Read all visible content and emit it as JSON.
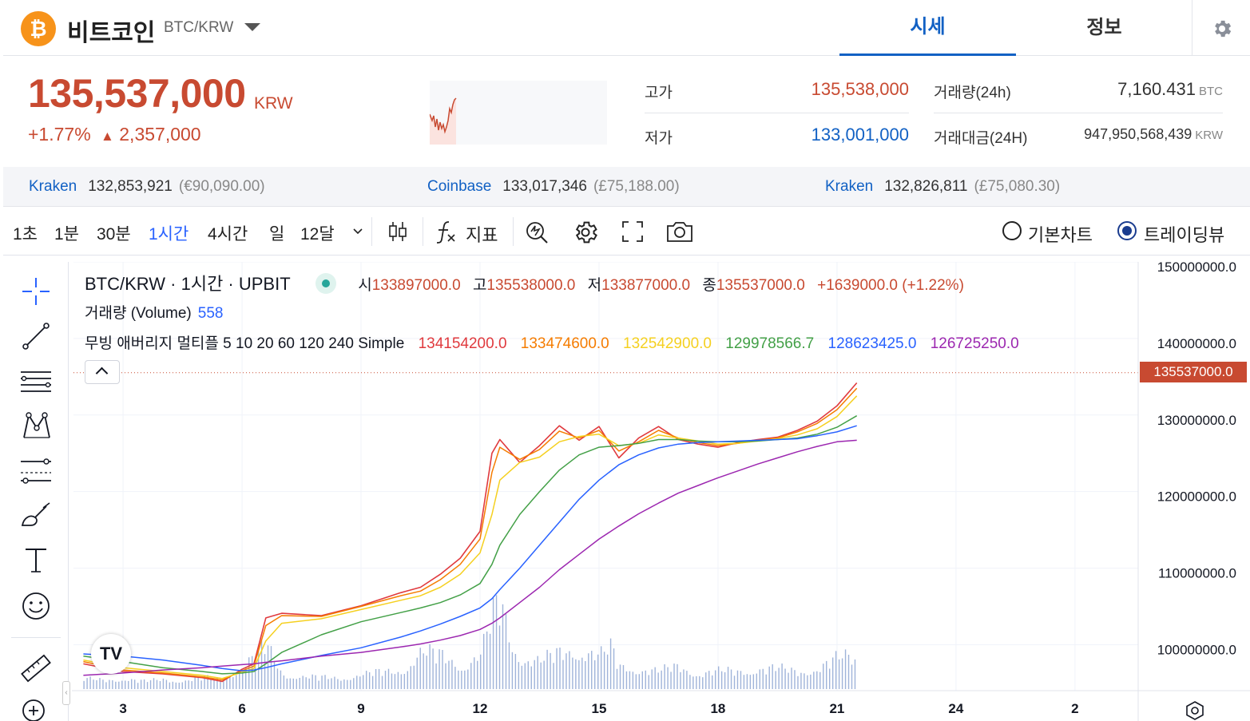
{
  "header": {
    "coin_symbol_glyph": "₿",
    "coin_name": "비트코인",
    "pair": "BTC/KRW",
    "tabs": [
      {
        "label": "시세",
        "active": true
      },
      {
        "label": "정보",
        "active": false
      }
    ]
  },
  "price": {
    "current": "135,537,000",
    "unit": "KRW",
    "change_pct": "+1.77%",
    "change_arrow": "▲",
    "change_abs": "2,357,000"
  },
  "stats": {
    "high_label": "고가",
    "high_value": "135,538,000",
    "low_label": "저가",
    "low_value": "133,001,000",
    "volume_label": "거래량(24h)",
    "volume_value": "7,160.431",
    "volume_unit": "BTC",
    "amount_label": "거래대금(24H)",
    "amount_value": "947,950,568,439",
    "amount_unit": "KRW"
  },
  "exchanges": [
    {
      "name": "Kraken",
      "price": "132,853,921",
      "fiat": "(€90,090.00)"
    },
    {
      "name": "Coinbase",
      "price": "133,017,346",
      "fiat": "(£75,188.00)"
    },
    {
      "name": "Kraken",
      "price": "132,826,811",
      "fiat": "(£75,080.30)"
    }
  ],
  "toolbar": {
    "timeframes": [
      {
        "label": "1초",
        "active": false
      },
      {
        "label": "1분",
        "active": false
      },
      {
        "label": "30분",
        "active": false
      },
      {
        "label": "1시간",
        "active": true
      },
      {
        "label": "4시간",
        "active": false
      },
      {
        "label": "일",
        "active": false
      },
      {
        "label": "12달",
        "active": false
      }
    ],
    "indicator_label": "지표",
    "chart_modes": [
      {
        "label": "기본차트",
        "checked": false
      },
      {
        "label": "트레이딩뷰",
        "checked": true
      }
    ]
  },
  "chart_legend": {
    "title": "BTC/KRW · 1시간 · UPBIT",
    "open_label": "시",
    "open": "133897000.0",
    "high_label": "고",
    "high": "135538000.0",
    "low_label": "저",
    "low": "133877000.0",
    "close_label": "종",
    "close": "135537000.0",
    "change": "+1639000.0 (+1.22%)",
    "volume_label": "거래량 (Volume)",
    "volume_value": "558",
    "ma_label": "무빙 애버리지 멀티플 5 10 20 60 120 240 Simple",
    "ma_values": [
      {
        "value": "134154200.0",
        "color": "#e03a3e"
      },
      {
        "value": "133474600.0",
        "color": "#f57c00"
      },
      {
        "value": "132542900.0",
        "color": "#f5d020"
      },
      {
        "value": "129978566.7",
        "color": "#43a047"
      },
      {
        "value": "128623425.0",
        "color": "#2962ff"
      },
      {
        "value": "126725250.0",
        "color": "#9c27b0"
      }
    ],
    "tv_logo": "TV",
    "last_price_tag": "135537000.0"
  },
  "colors": {
    "up": "#c84a31",
    "down": "#1261c4",
    "accent": "#1261c4",
    "ma5": "#e03a3e",
    "ma10": "#f57c00",
    "ma20": "#f5d020",
    "ma60": "#43a047",
    "ma120": "#2962ff",
    "ma240": "#9c27b0",
    "volume": "#9fb3d9"
  },
  "chart_data": {
    "type": "line",
    "x_ticks": [
      "3",
      "6",
      "9",
      "12",
      "15",
      "18",
      "21",
      "24",
      "2"
    ],
    "y_ticks": [
      "150000000.0",
      "140000000.0",
      "130000000.0",
      "120000000.0",
      "110000000.0",
      "100000000.0"
    ],
    "ylim": [
      94000000,
      150000000
    ],
    "last_price": 135537000,
    "series": [
      {
        "name": "5",
        "color": "#e03a3e",
        "x": [
          2.0,
          3.0,
          4.0,
          5.0,
          5.5,
          6.0,
          6.3,
          6.6,
          7.0,
          8.0,
          9.0,
          10.0,
          10.5,
          11.0,
          11.5,
          12.0,
          12.3,
          12.5,
          13.0,
          13.5,
          14.0,
          14.5,
          15.0,
          15.5,
          16.0,
          16.5,
          17.0,
          17.5,
          18.0,
          18.5,
          19.0,
          19.5,
          20.0,
          20.5,
          21.0,
          21.5
        ],
        "values": [
          97.5,
          96.5,
          96.2,
          95.7,
          95.2,
          96.8,
          97.5,
          103.5,
          104.1,
          103.8,
          105.1,
          106.8,
          107.5,
          109.2,
          111.3,
          114.8,
          125.0,
          126.8,
          123.8,
          126.0,
          128.6,
          126.7,
          128.5,
          124.4,
          127.0,
          128.5,
          126.8,
          126.2,
          125.8,
          126.4,
          126.8,
          127.1,
          128.0,
          129.2,
          131.2,
          134.2
        ]
      },
      {
        "name": "10",
        "color": "#f57c00",
        "x": [
          2.0,
          3.0,
          4.0,
          5.0,
          5.5,
          6.0,
          6.3,
          6.6,
          7.0,
          8.0,
          9.0,
          10.0,
          10.5,
          11.0,
          11.5,
          12.0,
          12.3,
          12.5,
          13.0,
          13.5,
          14.0,
          14.5,
          15.0,
          15.5,
          16.0,
          16.5,
          17.0,
          17.5,
          18.0,
          18.5,
          19.0,
          19.5,
          20.0,
          20.5,
          21.0,
          21.5
        ],
        "values": [
          97.8,
          96.7,
          96.3,
          95.8,
          95.4,
          96.6,
          97.2,
          102.5,
          103.8,
          103.7,
          105.0,
          106.4,
          107.0,
          108.5,
          110.5,
          113.8,
          122.5,
          125.8,
          124.2,
          125.5,
          127.9,
          127.0,
          128.0,
          125.3,
          126.5,
          128.0,
          127.0,
          126.4,
          126.0,
          126.3,
          126.7,
          127.0,
          127.8,
          128.9,
          130.7,
          133.5
        ]
      },
      {
        "name": "20",
        "color": "#f5d020",
        "x": [
          2.0,
          3.0,
          4.0,
          5.0,
          5.5,
          6.0,
          6.3,
          6.6,
          7.0,
          8.0,
          9.0,
          10.0,
          10.5,
          11.0,
          11.5,
          12.0,
          12.3,
          12.5,
          13.0,
          13.5,
          14.0,
          14.5,
          15.0,
          15.5,
          16.0,
          16.5,
          17.0,
          17.5,
          18.0,
          18.5,
          19.0,
          19.5,
          20.0,
          20.5,
          21.0,
          21.5
        ],
        "values": [
          98.0,
          97.0,
          96.5,
          96.0,
          95.6,
          96.4,
          96.9,
          100.5,
          102.8,
          103.4,
          104.6,
          105.8,
          106.4,
          107.5,
          109.2,
          112.0,
          117.0,
          121.5,
          123.8,
          124.5,
          126.5,
          127.2,
          127.5,
          126.0,
          126.3,
          127.4,
          127.0,
          126.6,
          126.2,
          126.3,
          126.6,
          126.9,
          127.4,
          128.2,
          129.8,
          132.5
        ]
      },
      {
        "name": "60",
        "color": "#43a047",
        "x": [
          2.0,
          3.0,
          4.0,
          5.0,
          5.5,
          6.0,
          6.3,
          6.6,
          7.0,
          8.0,
          9.0,
          10.0,
          10.5,
          11.0,
          11.5,
          12.0,
          12.3,
          12.5,
          13.0,
          13.5,
          14.0,
          14.5,
          15.0,
          15.5,
          16.0,
          16.5,
          17.0,
          17.5,
          18.0,
          18.5,
          19.0,
          19.5,
          20.0,
          20.5,
          21.0,
          21.5
        ],
        "values": [
          98.5,
          97.8,
          97.0,
          96.5,
          96.2,
          96.3,
          96.5,
          97.5,
          99.0,
          101.3,
          103.0,
          104.2,
          104.8,
          105.5,
          106.5,
          108.0,
          110.5,
          113.0,
          117.0,
          120.0,
          122.8,
          124.8,
          125.8,
          126.0,
          126.3,
          126.8,
          126.8,
          126.6,
          126.5,
          126.5,
          126.6,
          126.8,
          127.0,
          127.5,
          128.4,
          129.9
        ]
      },
      {
        "name": "120",
        "color": "#2962ff",
        "x": [
          2.0,
          3.0,
          4.0,
          5.0,
          5.5,
          6.0,
          6.3,
          6.6,
          7.0,
          8.0,
          9.0,
          10.0,
          10.5,
          11.0,
          11.5,
          12.0,
          12.3,
          12.5,
          13.0,
          13.5,
          14.0,
          14.5,
          15.0,
          15.5,
          16.0,
          16.5,
          17.0,
          17.5,
          18.0,
          18.5,
          19.0,
          19.5,
          20.0,
          20.5,
          21.0,
          21.5
        ],
        "values": [
          98.8,
          98.5,
          98.0,
          97.3,
          96.9,
          96.6,
          96.7,
          97.0,
          97.5,
          98.6,
          99.6,
          101.0,
          101.8,
          102.7,
          103.7,
          104.8,
          106.0,
          107.2,
          110.0,
          113.0,
          116.0,
          119.0,
          121.5,
          123.5,
          124.8,
          125.7,
          126.2,
          126.4,
          126.5,
          126.6,
          126.7,
          126.8,
          126.9,
          127.3,
          127.8,
          128.6
        ]
      },
      {
        "name": "240",
        "color": "#9c27b0",
        "x": [
          2.0,
          3.0,
          4.0,
          5.0,
          5.5,
          6.0,
          6.3,
          6.6,
          7.0,
          8.0,
          9.0,
          10.0,
          10.5,
          11.0,
          11.5,
          12.0,
          12.3,
          12.5,
          13.0,
          13.5,
          14.0,
          14.5,
          15.0,
          15.5,
          16.0,
          16.5,
          17.0,
          17.5,
          18.0,
          18.5,
          19.0,
          19.5,
          20.0,
          20.5,
          21.0,
          21.5
        ],
        "values": [
          96.0,
          96.3,
          96.7,
          97.0,
          97.2,
          97.4,
          97.5,
          97.7,
          97.9,
          98.5,
          99.0,
          99.7,
          100.1,
          100.6,
          101.2,
          102.0,
          102.8,
          103.5,
          105.5,
          107.5,
          109.8,
          111.8,
          113.8,
          115.5,
          117.1,
          118.5,
          119.8,
          120.8,
          121.8,
          122.7,
          123.6,
          124.4,
          125.2,
          125.9,
          126.5,
          126.7
        ]
      }
    ],
    "volume": {
      "x": [
        2.0,
        2.5,
        3.0,
        3.5,
        4.0,
        4.5,
        5.0,
        5.5,
        6.0,
        6.3,
        6.6,
        7.0,
        7.5,
        8.0,
        8.5,
        9.0,
        9.5,
        10.0,
        10.5,
        11.0,
        11.5,
        12.0,
        12.3,
        12.5,
        12.8,
        13.0,
        13.5,
        14.0,
        14.5,
        15.0,
        15.3,
        15.5,
        16.0,
        16.5,
        17.0,
        17.5,
        18.0,
        18.5,
        19.0,
        19.5,
        20.0,
        20.5,
        21.0,
        21.3,
        21.5
      ],
      "values": [
        400,
        350,
        420,
        300,
        380,
        330,
        450,
        380,
        900,
        1300,
        1700,
        600,
        500,
        450,
        420,
        600,
        650,
        700,
        1500,
        1300,
        900,
        1400,
        2800,
        3400,
        1700,
        1300,
        1100,
        1400,
        1600,
        1300,
        1600,
        900,
        800,
        700,
        900,
        600,
        700,
        700,
        800,
        800,
        700,
        800,
        1200,
        1300,
        1100
      ]
    }
  }
}
